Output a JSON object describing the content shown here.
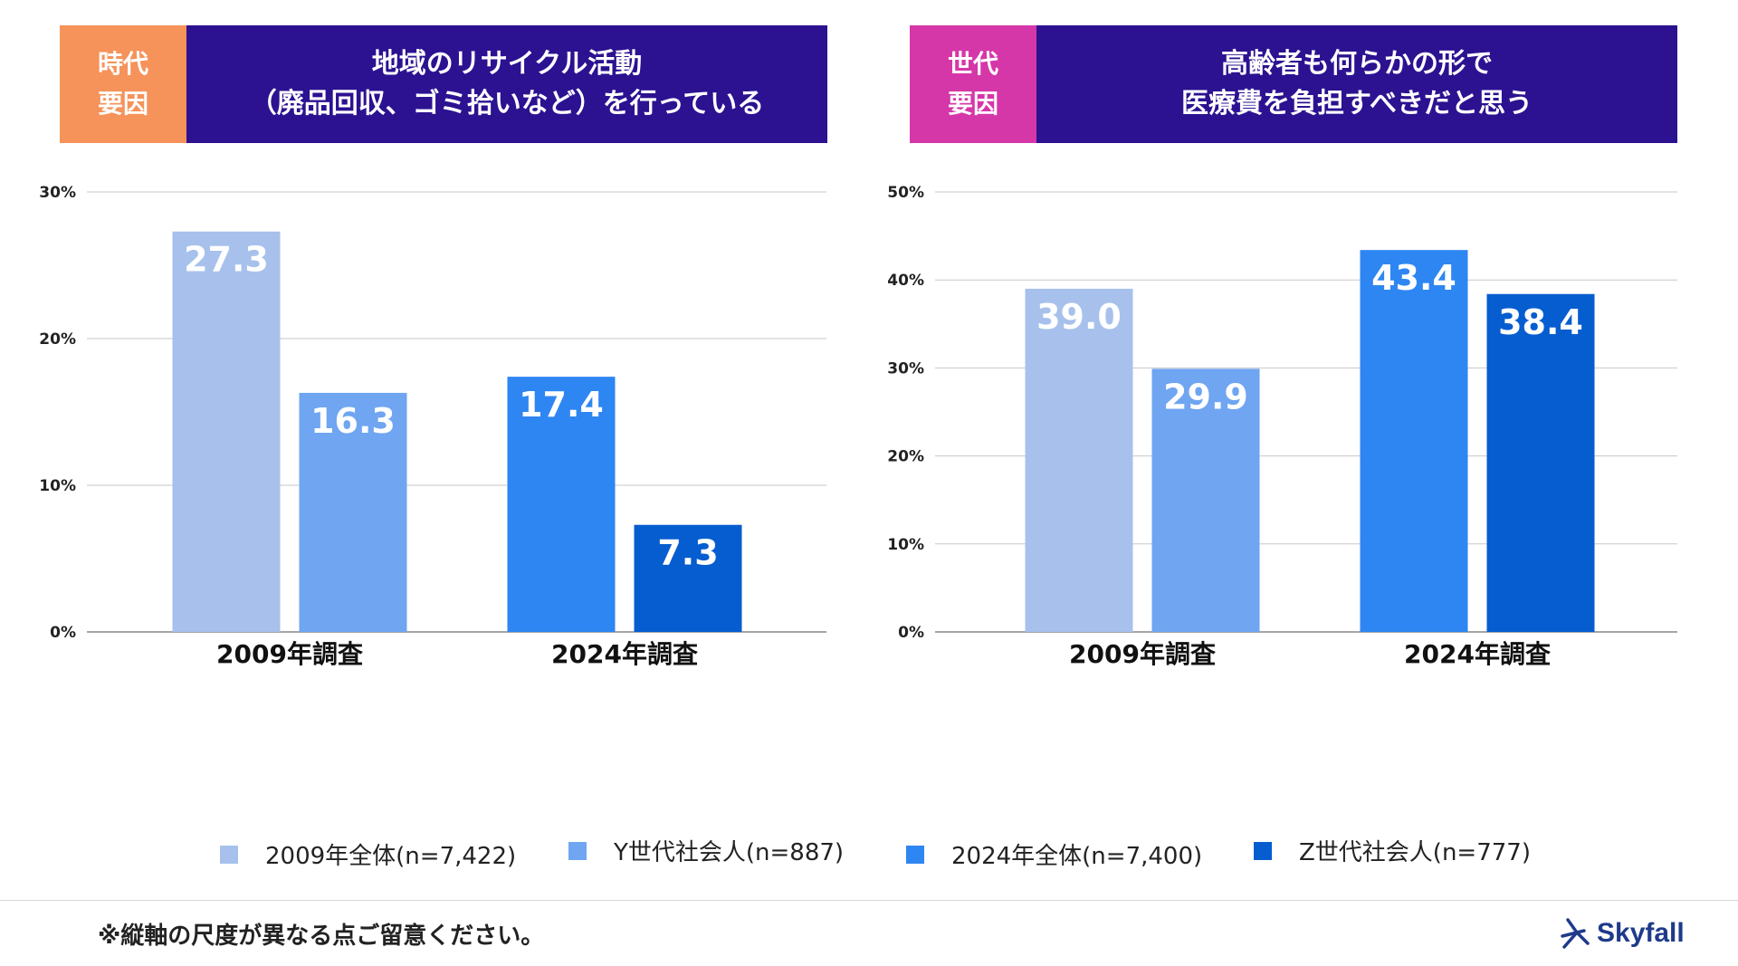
{
  "colors": {
    "series": [
      "#a7c1ec",
      "#6fa5f1",
      "#2e86f2",
      "#065dd0"
    ],
    "tag_left": "#f5935a",
    "tag_right": "#d637a8",
    "title_bg": "#2c1291"
  },
  "panels": [
    {
      "tag": "時代\n要因",
      "title": "地域のリサイクル活動\n（廃品回収、ゴミ拾いなど）を行っている"
    },
    {
      "tag": "世代\n要因",
      "title": "高齢者も何らかの形で\n医療費を負担すべきだと思う"
    }
  ],
  "chart_data": [
    {
      "type": "bar",
      "title": "地域のリサイクル活動（廃品回収、ゴミ拾いなど）を行っている",
      "categories": [
        "2009年調査",
        "2024年調査"
      ],
      "series": [
        {
          "name": "2009年全体(n=7,422)",
          "values": [
            27.3,
            null
          ]
        },
        {
          "name": "Y世代社会人(n=887)",
          "values": [
            16.3,
            null
          ]
        },
        {
          "name": "2024年全体(n=7,400)",
          "values": [
            null,
            17.4
          ]
        },
        {
          "name": "Z世代社会人(n=777)",
          "values": [
            null,
            7.3
          ]
        }
      ],
      "ylim": [
        0,
        30
      ],
      "yticks": [
        0,
        10,
        20,
        30
      ],
      "ytick_labels": [
        "0%",
        "10%",
        "20%",
        "30%"
      ],
      "value_labels": [
        "27.3",
        "16.3",
        "17.4",
        "7.3"
      ],
      "xlabel": "",
      "ylabel": ""
    },
    {
      "type": "bar",
      "title": "高齢者も何らかの形で医療費を負担すべきだと思う",
      "categories": [
        "2009年調査",
        "2024年調査"
      ],
      "series": [
        {
          "name": "2009年全体(n=7,422)",
          "values": [
            39.0,
            null
          ]
        },
        {
          "name": "Y世代社会人(n=887)",
          "values": [
            29.9,
            null
          ]
        },
        {
          "name": "2024年全体(n=7,400)",
          "values": [
            null,
            43.4
          ]
        },
        {
          "name": "Z世代社会人(n=777)",
          "values": [
            null,
            38.4
          ]
        }
      ],
      "ylim": [
        0,
        50
      ],
      "yticks": [
        0,
        10,
        20,
        30,
        40,
        50
      ],
      "ytick_labels": [
        "0%",
        "10%",
        "20%",
        "30%",
        "40%",
        "50%"
      ],
      "value_labels": [
        "39.0",
        "29.9",
        "43.4",
        "38.4"
      ],
      "xlabel": "",
      "ylabel": ""
    }
  ],
  "legend": [
    "2009年全体(n=7,422)",
    "Y世代社会人(n=887)",
    "2024年全体(n=7,400)",
    "Z世代社会人(n=777)"
  ],
  "footnote": "※縦軸の尺度が異なる点ご留意ください。",
  "logo": {
    "text": "Skyfall"
  }
}
